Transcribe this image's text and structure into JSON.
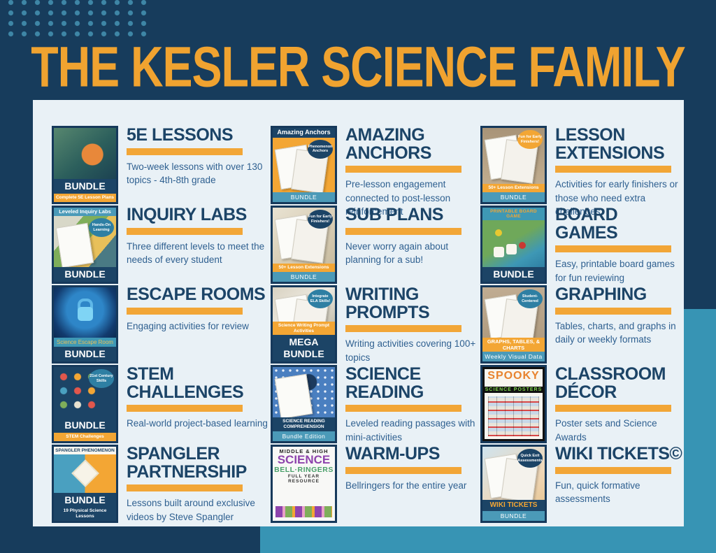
{
  "page": {
    "title": "THE KESLER SCIENCE FAMILY",
    "colors": {
      "background_navy": "#173C5C",
      "accent_orange": "#F0A330",
      "accent_teal": "#3794B4",
      "panel_background": "#E9F1F6",
      "card_title_navy": "#1C4467",
      "description_blue": "#2F6090"
    }
  },
  "products": [
    {
      "id": "5e-lessons",
      "title": "5E LESSONS",
      "description": "Two-week lessons with over 130 topics - 4th-8th grade",
      "thumb": {
        "bands": [
          {
            "style": "navy",
            "text": "BUNDLE"
          },
          {
            "style": "orange",
            "text": "Complete 5E Lesson Plans"
          }
        ]
      }
    },
    {
      "id": "amazing-anchors",
      "title": "AMAZING\nANCHORS",
      "description": "Pre-lesson engagement connected to post-lesson reinforcement",
      "thumb": {
        "top": {
          "style": "navy",
          "text": "Amazing Anchors"
        },
        "badge": {
          "style": "navy",
          "text": "Phenomenon Anchors"
        },
        "bands": [
          {
            "style": "teal",
            "text": "BUNDLE"
          }
        ]
      }
    },
    {
      "id": "lesson-extensions",
      "title": "LESSON\nEXTENSIONS",
      "description": "Activities for early finishers or those who need extra challenges",
      "thumb": {
        "badge": {
          "style": "orange",
          "text": "Fun for Early Finishers!"
        },
        "bands": [
          {
            "style": "orange",
            "text": "50+ Lesson Extensions"
          },
          {
            "style": "teal",
            "text": "BUNDLE"
          }
        ]
      }
    },
    {
      "id": "inquiry-labs",
      "title": "INQUIRY LABS",
      "description": "Three different levels to meet the needs of every student",
      "thumb": {
        "top": {
          "style": "teal",
          "text": "Leveled Inquiry Labs"
        },
        "badge": {
          "style": "teal",
          "text": "Hands-On Learning"
        },
        "bands": [
          {
            "style": "navy",
            "text": "BUNDLE"
          }
        ]
      }
    },
    {
      "id": "sub-plans",
      "title": "SUB PLANS",
      "description": "Never worry again about planning for a sub!",
      "thumb": {
        "badge": {
          "style": "navy",
          "text": "Fun for Early Finishers!"
        },
        "bands": [
          {
            "style": "orange",
            "text": "50+ Lesson Extensions"
          },
          {
            "style": "teal",
            "text": "BUNDLE"
          }
        ]
      }
    },
    {
      "id": "board-games",
      "title": "BOARD\nGAMES",
      "description": "Easy, printable board games for fun reviewing",
      "thumb": {
        "top": {
          "style": "teal-orange",
          "text": "PRINTABLE BOARD GAME"
        },
        "bands": [
          {
            "style": "navy",
            "text": "BUNDLE"
          }
        ]
      }
    },
    {
      "id": "escape-rooms",
      "title": "ESCAPE ROOMS",
      "description": "Engaging activities for review",
      "thumb": {
        "bands": [
          {
            "style": "teal-orange",
            "text": "Science Escape Room"
          },
          {
            "style": "navy",
            "text": "BUNDLE"
          }
        ]
      }
    },
    {
      "id": "writing-prompts",
      "title": "WRITING\nPROMPTS",
      "description": "Writing activities covering 100+ topics",
      "thumb": {
        "badge": {
          "style": "teal",
          "text": "Integrate ELA Skills!"
        },
        "bands": [
          {
            "style": "orange",
            "text": "Science Writing Prompt Activities"
          },
          {
            "style": "navy",
            "text": "MEGA BUNDLE"
          }
        ]
      }
    },
    {
      "id": "graphing",
      "title": "GRAPHING",
      "description": "Tables, charts, and graphs in daily or weekly formats",
      "thumb": {
        "badge": {
          "style": "teal",
          "text": "Student-Centered"
        },
        "bands": [
          {
            "style": "orange-lg",
            "text": "GRAPHS, TABLES, & CHARTS"
          },
          {
            "style": "teal",
            "text": "Weekly Visual Data"
          }
        ]
      }
    },
    {
      "id": "stem-challenges",
      "title": "STEM\nCHALLENGES",
      "description": "Real-world project-based learning",
      "thumb": {
        "badge": {
          "style": "teal",
          "text": "21st Century Skills"
        },
        "bands": [
          {
            "style": "navy",
            "text": "BUNDLE"
          },
          {
            "style": "orange",
            "text": "STEM Challenges"
          }
        ]
      }
    },
    {
      "id": "science-reading",
      "title": "SCIENCE\nREADING",
      "description": "Leveled reading passages with mini-activities",
      "thumb": {
        "bands": [
          {
            "style": "navy-sub",
            "text": "SCIENCE READING COMPREHENSION"
          },
          {
            "style": "teal",
            "text": "Bundle Edition"
          }
        ]
      }
    },
    {
      "id": "classroom-decor",
      "title": "CLASSROOM\nDÉCOR",
      "description": "Poster sets and Science Awards",
      "thumb": {
        "cover": [
          "SPOOKY",
          "SCIENCE POSTERS"
        ]
      }
    },
    {
      "id": "spangler-partnership",
      "title": "SPANGLER\nPARTNERSHIP",
      "description": "Lessons built around exclusive videos by Steve Spangler",
      "thumb": {
        "top": {
          "style": "white",
          "text": "SPANGLER PHENOMENON"
        },
        "bands": [
          {
            "style": "navy",
            "text": "BUNDLE"
          },
          {
            "style": "navy-sub",
            "text": "19 Physical Science Lessons"
          }
        ]
      }
    },
    {
      "id": "warm-ups",
      "title": "WARM-UPS",
      "description": "Bellringers for the entire year",
      "thumb": {
        "cover": [
          "MIDDLE & HIGH",
          "SCIENCE",
          "BELL·RINGERS",
          "FULL YEAR RESOURCE"
        ]
      }
    },
    {
      "id": "wiki-tickets",
      "title": "WIKI TICKETS©",
      "description": "Fun, quick formative assessments",
      "thumb": {
        "badge": {
          "style": "navy",
          "text": "Quick Exit Assessments"
        },
        "bands": [
          {
            "style": "navy-orange",
            "text": "WIKI TICKETS"
          },
          {
            "style": "teal",
            "text": "BUNDLE"
          }
        ]
      }
    }
  ]
}
